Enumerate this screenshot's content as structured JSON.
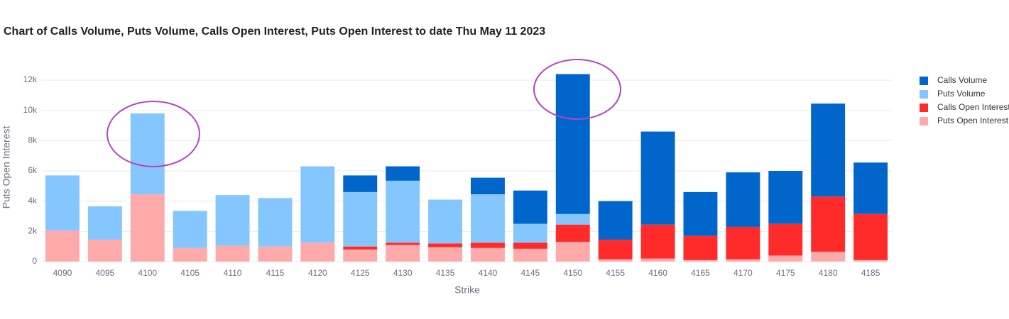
{
  "chart_data": {
    "type": "stacked_bar",
    "title": "Chart of Calls Volume, Puts Volume, Calls Open Interest, Puts Open Interest to date Thu May 11 2023",
    "x_label": "Strike",
    "y_label": "Puts Open Interest",
    "categories": [
      "4090",
      "4095",
      "4100",
      "4105",
      "4110",
      "4115",
      "4120",
      "4125",
      "4130",
      "4135",
      "4140",
      "4145",
      "4150",
      "4155",
      "4160",
      "4165",
      "4170",
      "4175",
      "4180",
      "4185"
    ],
    "series": [
      {
        "name": "Calls Volume",
        "color": "#0066cc",
        "values": [
          0,
          0,
          0,
          0,
          0,
          0,
          0,
          1100,
          950,
          0,
          1100,
          2200,
          9250,
          2550,
          6150,
          2900,
          3600,
          3500,
          6150,
          3400
        ]
      },
      {
        "name": "Puts Volume",
        "color": "#85c6fe",
        "values": [
          3650,
          2200,
          5350,
          2450,
          3350,
          3200,
          5050,
          3600,
          4100,
          2900,
          3200,
          1250,
          700,
          0,
          0,
          0,
          0,
          0,
          0,
          0
        ]
      },
      {
        "name": "Calls Open Interest",
        "color": "#ff2b2b",
        "values": [
          0,
          0,
          0,
          0,
          0,
          0,
          0,
          200,
          150,
          250,
          350,
          400,
          1150,
          1300,
          2250,
          1600,
          2150,
          2100,
          3650,
          3050
        ]
      },
      {
        "name": "Puts Open Interest",
        "color": "#ffaaaa",
        "values": [
          2050,
          1450,
          4450,
          900,
          1050,
          1000,
          1250,
          800,
          1100,
          950,
          900,
          850,
          1300,
          150,
          200,
          100,
          150,
          400,
          650,
          100
        ]
      }
    ],
    "ylim": [
      0,
      12800
    ],
    "yticks": [
      0,
      {
        "value": 2000,
        "label": "2k"
      },
      {
        "value": 4000,
        "label": "4k"
      },
      {
        "value": 6000,
        "label": "6k"
      },
      {
        "value": 8000,
        "label": "8k"
      },
      {
        "value": 10000,
        "label": "10k"
      },
      {
        "value": 12000,
        "label": "12k"
      }
    ],
    "grid": true,
    "legend": "right"
  }
}
